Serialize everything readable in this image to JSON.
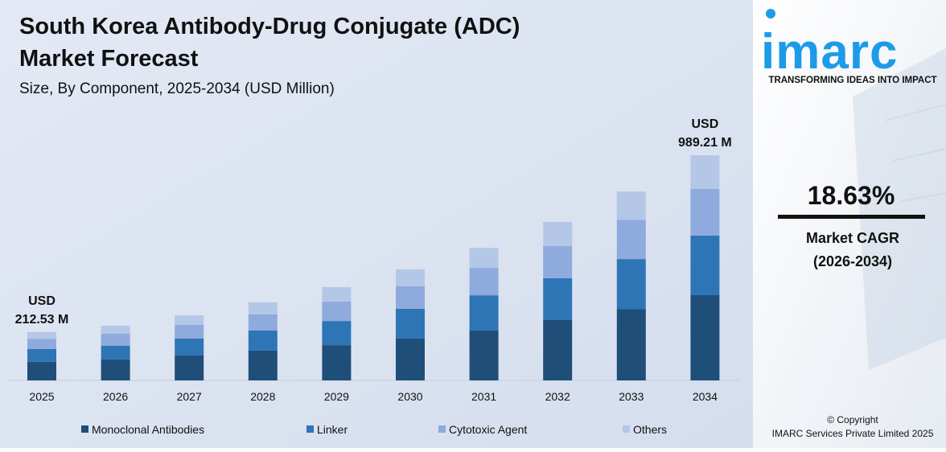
{
  "chart_data": {
    "type": "stacked-bar",
    "title": "South Korea Antibody-Drug Conjugate (ADC) Market Forecast",
    "subtitle": "Size, By Component, 2025-2034 (USD Million)",
    "categories": [
      "2025",
      "2026",
      "2027",
      "2028",
      "2029",
      "2030",
      "2031",
      "2032",
      "2033",
      "2034"
    ],
    "series": [
      {
        "name": "Monoclonal Antibodies",
        "color": "#1f4e79",
        "values": [
          82,
          92,
          110,
          131,
          155,
          184,
          219,
          265,
          314,
          374.6
        ]
      },
      {
        "name": "Linker",
        "color": "#2e75b6",
        "values": [
          56,
          60,
          74,
          88,
          106,
          131,
          155,
          184,
          219,
          261.4
        ]
      },
      {
        "name": "Cytotoxic Agent",
        "color": "#8faadc",
        "values": [
          45,
          53,
          60,
          71,
          85,
          99,
          120,
          141,
          173,
          204.9
        ]
      },
      {
        "name": "Others",
        "color": "#b4c7e7",
        "values": [
          29.53,
          35,
          42,
          53,
          64,
          74,
          88,
          106,
          124,
          148.31
        ]
      }
    ],
    "annotations": [
      {
        "category": 0,
        "lines": [
          "USD",
          "212.53 M"
        ]
      },
      {
        "category": 9,
        "lines": [
          "USD",
          "989.21 M"
        ]
      }
    ]
  },
  "sidebar": {
    "logo": "imarc",
    "tagline": "TRANSFORMING IDEAS INTO IMPACT",
    "cagr": "18.63%",
    "cagr_label": "Market CAGR",
    "cagr_period": "(2026-2034)",
    "copyright": "© Copyright",
    "company": "IMARC Services Private Limited 2025"
  }
}
